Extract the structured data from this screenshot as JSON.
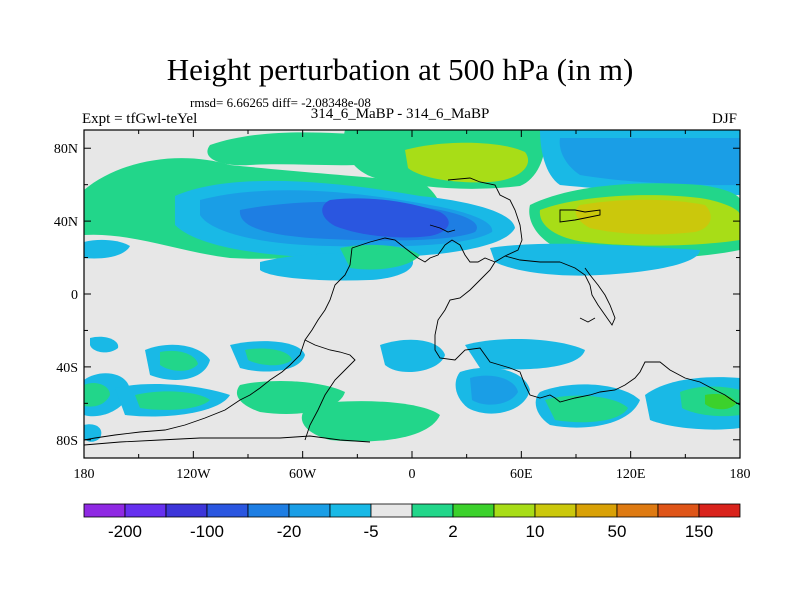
{
  "chart_data": {
    "type": "heatmap",
    "title": "Height perturbation at 500 hPa (in m)",
    "stats_text": "rmsd= 6.66265  diff= -2.08348e-08",
    "left_label": "Expt = tfGwl-teYel",
    "center_label": "314_6_MaBP - 314_6_MaBP",
    "right_label": "DJF",
    "x_range": [
      -180,
      180
    ],
    "y_range": [
      -90,
      90
    ],
    "x_ticks": [
      {
        "value": -180,
        "label": "180"
      },
      {
        "value": -120,
        "label": "120W"
      },
      {
        "value": -60,
        "label": "60W"
      },
      {
        "value": 0,
        "label": "0"
      },
      {
        "value": 60,
        "label": "60E"
      },
      {
        "value": 120,
        "label": "120E"
      },
      {
        "value": 180,
        "label": "180"
      }
    ],
    "y_ticks": [
      {
        "value": 80,
        "label": "80N"
      },
      {
        "value": 40,
        "label": "40N"
      },
      {
        "value": 0,
        "label": "0"
      },
      {
        "value": -40,
        "label": "40S"
      },
      {
        "value": -80,
        "label": "80S"
      }
    ],
    "colorbar": {
      "colors": [
        "#8f29e3",
        "#6630ef",
        "#3d35d9",
        "#2a56e0",
        "#1e7ee3",
        "#1a9ee6",
        "#19b9e6",
        "#e7e7e7",
        "#22d68a",
        "#3cd12c",
        "#a8dd17",
        "#cbc80c",
        "#d9a106",
        "#de7a12",
        "#df5518",
        "#d9231c"
      ],
      "labels": [
        {
          "after_index": 0,
          "text": "-200"
        },
        {
          "after_index": 2,
          "text": "-100"
        },
        {
          "after_index": 4,
          "text": "-20"
        },
        {
          "after_index": 6,
          "text": "-5"
        },
        {
          "after_index": 8,
          "text": "2"
        },
        {
          "after_index": 10,
          "text": "10"
        },
        {
          "after_index": 12,
          "text": "50"
        },
        {
          "after_index": 14,
          "text": "150"
        }
      ]
    },
    "field_levels": [
      {
        "level": "green",
        "color": "#22d68a"
      },
      {
        "level": "light-green",
        "color": "#a8dd17"
      },
      {
        "level": "olive",
        "color": "#cbc80c"
      },
      {
        "level": "cyan",
        "color": "#19b9e6"
      },
      {
        "level": "light-blue",
        "color": "#1a9ee6"
      },
      {
        "level": "blue",
        "color": "#1e7ee3"
      },
      {
        "level": "dark-blue",
        "color": "#2a56e0"
      }
    ]
  }
}
